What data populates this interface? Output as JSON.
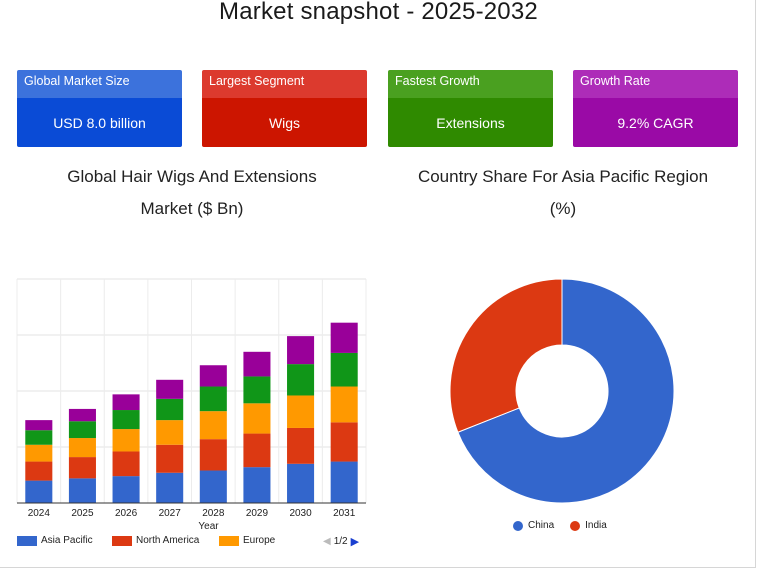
{
  "page": {
    "title": "Market snapshot - 2025-2032"
  },
  "cards": [
    {
      "label": "Global Market Size",
      "value": "USD 8.0 billion",
      "head_color": "#3c72dc",
      "body_color": "#0a4bd6"
    },
    {
      "label": "Largest Segment",
      "value": "Wigs",
      "head_color": "#dc3a2e",
      "body_color": "#cc1500"
    },
    {
      "label": "Fastest Growth",
      "value": "Extensions",
      "head_color": "#4aa020",
      "body_color": "#2f8a00"
    },
    {
      "label": "Growth Rate",
      "value": "9.2% CAGR",
      "head_color": "#ad2cb8",
      "body_color": "#9a0aa6"
    }
  ],
  "bar_chart": {
    "title_line1": "Global Hair Wigs And Extensions",
    "title_line2": "Market ($ Bn)",
    "pager": {
      "text": "1/2"
    }
  },
  "donut_chart": {
    "title_line1": "Country Share For Asia Pacific Region",
    "title_line2": "(%)"
  },
  "chart_data": [
    {
      "type": "bar",
      "stacked": true,
      "title": "Global Hair Wigs And Extensions Market ($ Bn)",
      "xlabel": "Year",
      "ylabel": "",
      "ylim": [
        0,
        10
      ],
      "grid": true,
      "legend_position": "bottom",
      "categories": [
        "2024",
        "2025",
        "2026",
        "2027",
        "2028",
        "2029",
        "2030",
        "2031"
      ],
      "series": [
        {
          "name": "Asia Pacific",
          "color": "#3366cc",
          "values": [
            1.0,
            1.1,
            1.2,
            1.35,
            1.45,
            1.6,
            1.75,
            1.85
          ]
        },
        {
          "name": "North America",
          "color": "#dc3912",
          "values": [
            0.85,
            0.95,
            1.1,
            1.25,
            1.4,
            1.5,
            1.6,
            1.75
          ]
        },
        {
          "name": "Europe",
          "color": "#ff9900",
          "values": [
            0.75,
            0.85,
            1.0,
            1.1,
            1.25,
            1.35,
            1.45,
            1.6
          ]
        },
        {
          "name": "",
          "color": "#109618",
          "values": [
            0.65,
            0.75,
            0.85,
            0.95,
            1.1,
            1.2,
            1.4,
            1.5
          ]
        },
        {
          "name": "",
          "color": "#990099",
          "values": [
            0.45,
            0.55,
            0.7,
            0.85,
            0.95,
            1.1,
            1.25,
            1.35
          ]
        }
      ]
    },
    {
      "type": "pie",
      "donut": true,
      "title": "Country Share For Asia Pacific Region (%)",
      "legend_position": "bottom",
      "labels": [
        "China",
        "India"
      ],
      "values": [
        69,
        31
      ],
      "colors": [
        "#3366cc",
        "#dc3912"
      ]
    }
  ]
}
